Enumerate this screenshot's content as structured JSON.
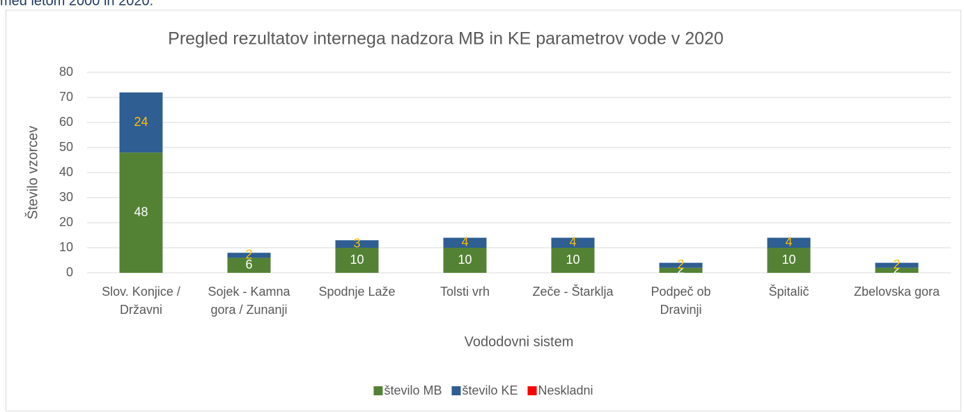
{
  "caption": "med letom 2000 in 2020.",
  "chart_data": {
    "type": "stacked_bar",
    "title": "Pregled rezultatov internega nadzora MB in KE parametrov vode v 2020",
    "xlabel": "Vododovni sistem",
    "ylabel": "Število vzorcev",
    "categories": [
      "Slov. Konjice / Državni",
      "Sojek - Kamna gora / Zunanji",
      "Spodnje Laže",
      "Tolsti vrh",
      "Zeče - Štarklja",
      "Podpeč ob Dravinji",
      "Špitalič",
      "Zbelovska gora"
    ],
    "series": [
      {
        "name": "število MB",
        "color": "#548235",
        "label_color": "#ffffff",
        "values": [
          48,
          6,
          10,
          10,
          10,
          2,
          10,
          2
        ]
      },
      {
        "name": "število KE",
        "color": "#2e5e92",
        "label_color": "#ffc000",
        "values": [
          24,
          2,
          3,
          4,
          4,
          2,
          4,
          2
        ]
      },
      {
        "name": "Neskladni",
        "color": "#ff0000",
        "values": [
          0,
          0,
          0,
          0,
          0,
          0,
          0,
          0
        ]
      }
    ],
    "ylim": [
      0,
      80
    ],
    "yticks": [
      0,
      10,
      20,
      30,
      40,
      50,
      60,
      70,
      80
    ],
    "grid": true,
    "legend": "bottom"
  }
}
